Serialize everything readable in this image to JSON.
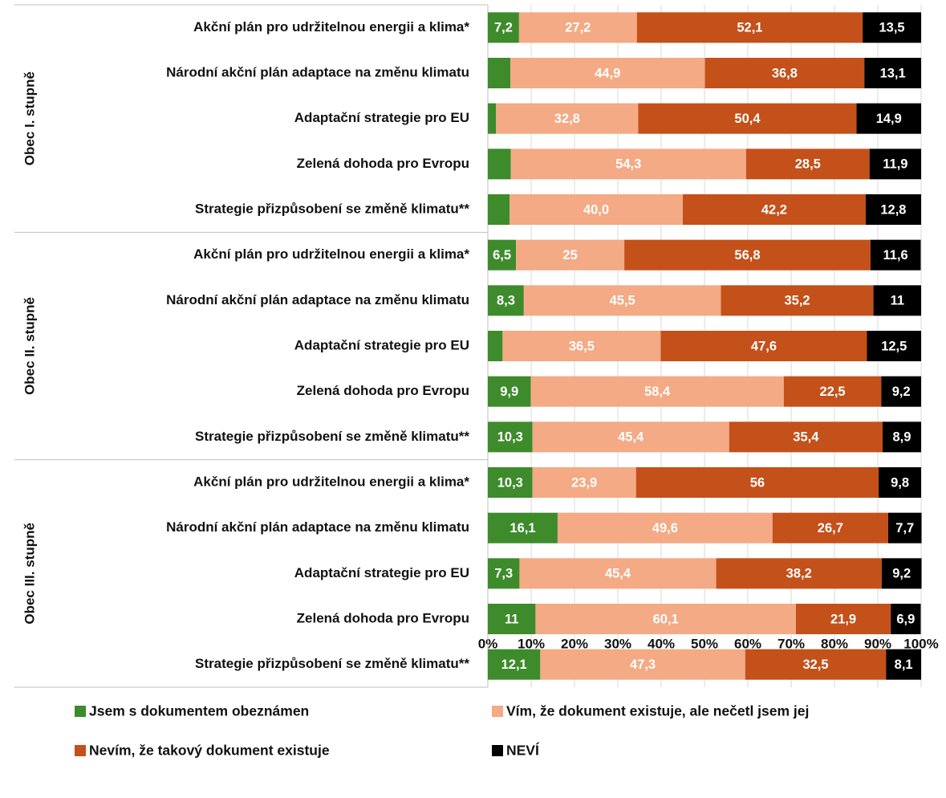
{
  "chart_data": {
    "type": "bar",
    "orientation": "horizontal",
    "stacked": true,
    "groups": [
      {
        "name": "Obec I. stupně",
        "categories": [
          "Akční plán pro udržitelnou energii a klima*",
          "Národní akční plán adaptace na změnu klimatu",
          "Adaptační strategie pro EU",
          "Zelená dohoda pro Evropu",
          "Strategie přizpůsobení se změně klimatu**"
        ]
      },
      {
        "name": "Obec II. stupně",
        "categories": [
          "Akční plán pro udržitelnou energii a klima*",
          "Národní akční plán adaptace na změnu klimatu",
          "Adaptační strategie pro EU",
          "Zelená dohoda pro Evropu",
          "Strategie přizpůsobení se změně klimatu**"
        ]
      },
      {
        "name": "Obec III. stupně",
        "categories": [
          "Akční plán pro udržitelnou energii a klima*",
          "Národní akční plán adaptace na změnu klimatu",
          "Adaptační strategie pro EU",
          "Zelená dohoda pro Evropu",
          "Strategie přizpůsobení se změně klimatu**"
        ]
      }
    ],
    "series": [
      {
        "name": "Jsem s dokumentem obeznámen",
        "color": "#3e8b2c",
        "values": [
          7.2,
          5.2,
          1.9,
          5.3,
          5.0,
          6.5,
          8.3,
          3.4,
          9.9,
          10.3,
          10.3,
          16.1,
          7.3,
          11,
          12.1
        ],
        "value_labels": [
          "7,2",
          null,
          null,
          null,
          null,
          "6,5",
          "8,3",
          null,
          "9,9",
          "10,3",
          "10,3",
          "16,1",
          "7,3",
          "11",
          "12,1"
        ]
      },
      {
        "name": "Vím, že dokument existuje, ale nečetl jsem jej",
        "color": "#f3aa85",
        "values": [
          27.2,
          44.9,
          32.8,
          54.3,
          40.0,
          25,
          45.5,
          36.5,
          58.4,
          45.4,
          23.9,
          49.6,
          45.4,
          60.1,
          47.3
        ],
        "value_labels": [
          "27,2",
          "44,9",
          "32,8",
          "54,3",
          "40,0",
          "25",
          "45,5",
          "36,5",
          "58,4",
          "45,4",
          "23,9",
          "49,6",
          "45,4",
          "60,1",
          "47,3"
        ]
      },
      {
        "name": "Nevím, že takový dokument existuje",
        "color": "#c4501a",
        "values": [
          52.1,
          36.8,
          50.4,
          28.5,
          42.2,
          56.8,
          35.2,
          47.6,
          22.5,
          35.4,
          56,
          26.7,
          38.2,
          21.9,
          32.5
        ],
        "value_labels": [
          "52,1",
          "36,8",
          "50,4",
          "28,5",
          "42,2",
          "56,8",
          "35,2",
          "47,6",
          "22,5",
          "35,4",
          "56",
          "26,7",
          "38,2",
          "21,9",
          "32,5"
        ]
      },
      {
        "name": "NEVÍ",
        "color": "#000000",
        "values": [
          13.5,
          13.1,
          14.9,
          11.9,
          12.8,
          11.6,
          11,
          12.5,
          9.2,
          8.9,
          9.8,
          7.7,
          9.2,
          6.9,
          8.1
        ],
        "value_labels": [
          "13,5",
          "13,1",
          "14,9",
          "11,9",
          "12,8",
          "11,6",
          "11",
          "12,5",
          "9,2",
          "8,9",
          "9,8",
          "7,7",
          "9,2",
          "6,9",
          "8,1"
        ]
      }
    ],
    "xlim": [
      0,
      100
    ],
    "xticks": [
      {
        "value": 0,
        "label": "0%"
      },
      {
        "value": 10,
        "label": "10%"
      },
      {
        "value": 20,
        "label": "20%"
      },
      {
        "value": 30,
        "label": "30%"
      },
      {
        "value": 40,
        "label": "40%"
      },
      {
        "value": 50,
        "label": "50%"
      },
      {
        "value": 60,
        "label": "60%"
      },
      {
        "value": 70,
        "label": "70%"
      },
      {
        "value": 80,
        "label": "80%"
      },
      {
        "value": 90,
        "label": "90%"
      },
      {
        "value": 100,
        "label": "100%"
      }
    ],
    "grid": true,
    "legend": "bottom"
  }
}
